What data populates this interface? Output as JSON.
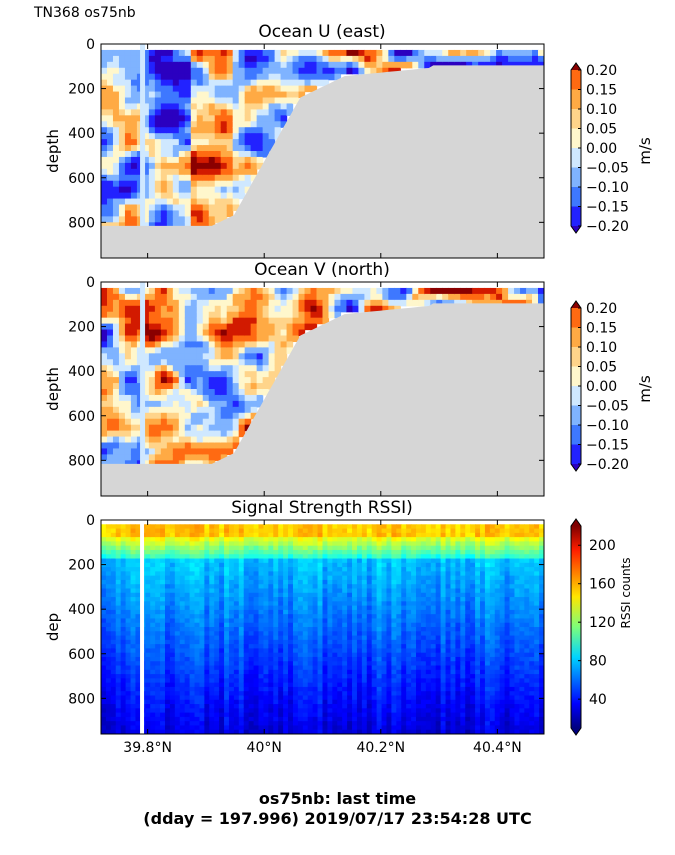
{
  "header": {
    "label": "TN368 os75nb"
  },
  "footer": {
    "line1": "os75nb: last time",
    "line2": "(dday = 197.996) 2019/07/17 23:54:28 UTC"
  },
  "x_axis": {
    "range": [
      39.72,
      40.48
    ],
    "ticks": [
      39.8,
      40.0,
      40.2,
      40.4
    ],
    "tick_labels": [
      "39.8°N",
      "40°N",
      "40.2°N",
      "40.4°N"
    ]
  },
  "chart_data": [
    {
      "type": "heatmap",
      "title": "Ocean U (east)",
      "ylabel": "depth",
      "ylim": [
        960,
        0
      ],
      "yticks": [
        0,
        200,
        400,
        600,
        800
      ],
      "colorbar": {
        "label": "m/s",
        "range": [
          -0.2,
          0.2
        ],
        "ticks": [
          "0.20",
          "0.15",
          "0.10",
          "0.05",
          "0.00",
          "−0.05",
          "−0.10",
          "−0.15",
          "−0.20"
        ]
      }
    },
    {
      "type": "heatmap",
      "title": "Ocean V (north)",
      "ylabel": "depth",
      "ylim": [
        960,
        0
      ],
      "yticks": [
        0,
        200,
        400,
        600,
        800
      ],
      "colorbar": {
        "label": "m/s",
        "range": [
          -0.2,
          0.2
        ],
        "ticks": [
          "0.20",
          "0.15",
          "0.10",
          "0.05",
          "0.00",
          "−0.05",
          "−0.10",
          "−0.15",
          "−0.20"
        ]
      }
    },
    {
      "type": "heatmap",
      "title": "Signal Strength RSSI)",
      "ylabel": "dep",
      "ylim": [
        960,
        0
      ],
      "yticks": [
        0,
        200,
        400,
        600,
        800
      ],
      "colorbar": {
        "label": "RSSI counts",
        "range": [
          10,
          220
        ],
        "ticks": [
          "200",
          "160",
          "120",
          "80",
          "40"
        ]
      }
    }
  ],
  "colors": {
    "land": "#d6d6d6",
    "velocity_levels": [
      "#2b00c0",
      "#2222ff",
      "#3e78ff",
      "#7fb3ff",
      "#cfe8ff",
      "#fff7cc",
      "#ffd48a",
      "#ffaa44",
      "#ff6a12",
      "#d21a00",
      "#8a0000"
    ]
  }
}
